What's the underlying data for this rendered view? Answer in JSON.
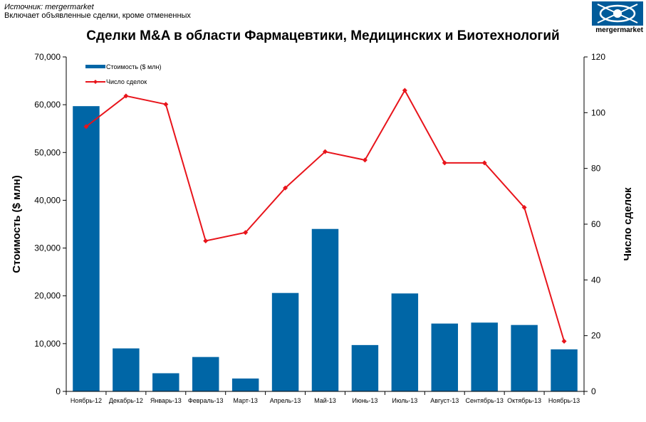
{
  "header": {
    "source": "Источник: mergermarket",
    "note": "Включает объявленные сделки, кроме отмененных"
  },
  "logo": {
    "text": "mergermarket",
    "color": "#005b9a"
  },
  "chart_data": {
    "type": "bar",
    "title": "Сделки M&A в области Фармацевтики, Медицинских и Биотехнологий",
    "categories": [
      "Ноябрь-12",
      "Декабрь-12",
      "Январь-13",
      "Февраль-13",
      "Март-13",
      "Апрель-13",
      "Май-13",
      "Июнь-13",
      "Июль-13",
      "Август-13",
      "Сентябрь-13",
      "Октябрь-13",
      "Ноябрь-13"
    ],
    "series": [
      {
        "name": "Стоимость ($ млн)",
        "type": "bar",
        "axis": "left",
        "color": "#0066a6",
        "values": [
          59700,
          9000,
          3800,
          7200,
          2700,
          20600,
          34000,
          9700,
          20500,
          14200,
          14400,
          13900,
          8800
        ]
      },
      {
        "name": "Число сделок",
        "type": "line",
        "axis": "right",
        "color": "#e8141b",
        "values": [
          95,
          106,
          103,
          54,
          57,
          73,
          86,
          83,
          108,
          82,
          82,
          66,
          18
        ]
      }
    ],
    "ylabel": "Стоимость ($ млн)",
    "y2label": "Число сделок",
    "ylim": [
      0,
      70000
    ],
    "y2lim": [
      0,
      120
    ],
    "yticks": [
      "0",
      "10,000",
      "20,000",
      "30,000",
      "40,000",
      "50,000",
      "60,000",
      "70,000"
    ],
    "y2ticks": [
      "0",
      "20",
      "40",
      "60",
      "80",
      "100",
      "120"
    ],
    "grid": false,
    "legend_position": "top-left"
  }
}
